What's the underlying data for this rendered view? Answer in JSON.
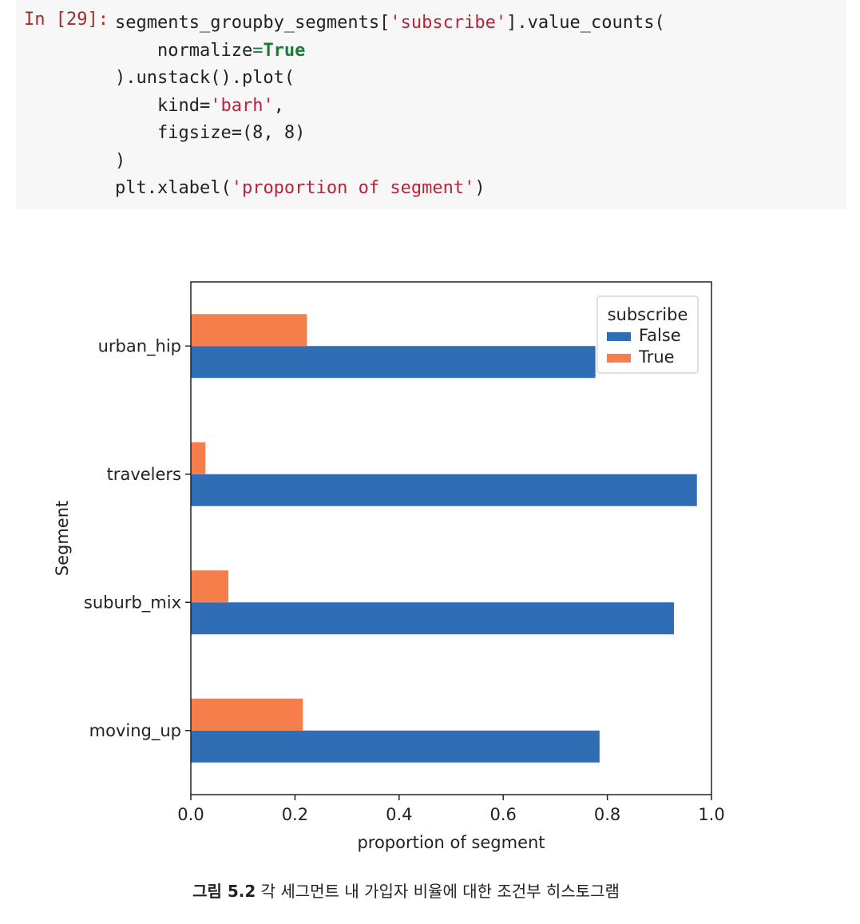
{
  "cell": {
    "prompt": "In [29]:",
    "lines": [
      [
        [
          "segments_groupby_segments[",
          "plain"
        ],
        [
          "'subscribe'",
          "str"
        ],
        [
          "].value_counts(",
          "plain"
        ]
      ],
      [
        [
          "    normalize",
          "plain"
        ],
        [
          "=",
          "op"
        ],
        [
          "True",
          "kw"
        ]
      ],
      [
        [
          ").unstack().plot(",
          "plain"
        ]
      ],
      [
        [
          "    kind=",
          "plain"
        ],
        [
          "'barh'",
          "str"
        ],
        [
          ",",
          "plain"
        ]
      ],
      [
        [
          "    figsize=(8, 8)",
          "plain"
        ]
      ],
      [
        [
          ")",
          "plain"
        ]
      ],
      [
        [
          "plt.xlabel(",
          "plain"
        ],
        [
          "'proportion of segment'",
          "str"
        ],
        [
          ")",
          "plain"
        ]
      ]
    ]
  },
  "chart_data": {
    "type": "bar",
    "orientation": "horizontal",
    "categories": [
      "moving_up",
      "suburb_mix",
      "travelers",
      "urban_hip"
    ],
    "series": [
      {
        "name": "False",
        "values": [
          0.785,
          0.928,
          0.972,
          0.777
        ],
        "color": "#2f6db5"
      },
      {
        "name": "True",
        "values": [
          0.215,
          0.072,
          0.028,
          0.223
        ],
        "color": "#f67e4b"
      }
    ],
    "xlabel": "proportion of segment",
    "ylabel": "Segment",
    "xlim": [
      0,
      1.0
    ],
    "xticks": [
      "0.0",
      "0.2",
      "0.4",
      "0.6",
      "0.8",
      "1.0"
    ],
    "legend": {
      "title": "subscribe",
      "placement": "top-right"
    },
    "grid": false
  },
  "caption": {
    "figure_number": "그림 5.2",
    "text": "각 세그먼트 내 가입자 비율에 대한 조건부 히스토그램"
  }
}
